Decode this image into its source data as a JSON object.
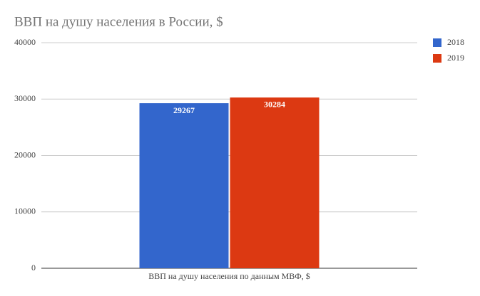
{
  "chart_data": {
    "type": "bar",
    "title": "ВВП на душу населения в России, $",
    "categories": [
      "ВВП на душу населения по данным МВФ, $"
    ],
    "series": [
      {
        "name": "2018",
        "color": "#3366cc",
        "values": [
          29267
        ]
      },
      {
        "name": "2019",
        "color": "#dc3912",
        "values": [
          30284
        ]
      }
    ],
    "ylim": [
      0,
      40000
    ],
    "yticks": [
      0,
      10000,
      20000,
      30000,
      40000
    ],
    "grid": true,
    "legend": "right"
  }
}
